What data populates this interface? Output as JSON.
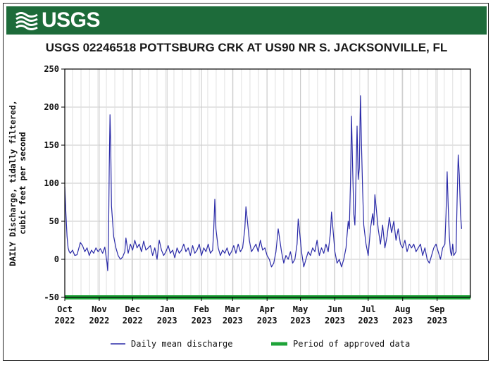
{
  "header": {
    "logo_text": "USGS",
    "logo_icon": "usgs-wave-icon",
    "brand_color": "#1d6b3a"
  },
  "chart_data": {
    "type": "line",
    "title": "USGS 02246518 POTTSBURG CRK AT US90 NR S. JACKSONVILLE, FL",
    "ylabel_lines": [
      "DAILY Discharge, tidally filtered,",
      "cubic feet per second"
    ],
    "ylim": [
      -50,
      250
    ],
    "yticks": [
      "250",
      "200",
      "150",
      "100",
      "50",
      "0",
      "-50"
    ],
    "ytick_values": [
      250,
      200,
      150,
      100,
      50,
      0,
      -50
    ],
    "xticks": [
      {
        "month": "Oct",
        "year": "2022",
        "day": 0
      },
      {
        "month": "Nov",
        "year": "2022",
        "day": 31
      },
      {
        "month": "Dec",
        "year": "2022",
        "day": 61
      },
      {
        "month": "Jan",
        "year": "2023",
        "day": 92
      },
      {
        "month": "Feb",
        "year": "2023",
        "day": 123
      },
      {
        "month": "Mar",
        "year": "2023",
        "day": 151
      },
      {
        "month": "Apr",
        "year": "2023",
        "day": 182
      },
      {
        "month": "May",
        "year": "2023",
        "day": 212
      },
      {
        "month": "Jun",
        "year": "2023",
        "day": 243
      },
      {
        "month": "Jul",
        "year": "2023",
        "day": 273
      },
      {
        "month": "Aug",
        "year": "2023",
        "day": 304
      },
      {
        "month": "Sep",
        "year": "2023",
        "day": 335
      }
    ],
    "x_range_days": [
      0,
      365
    ],
    "grid": true,
    "series": [
      {
        "name": "Daily mean discharge",
        "color": "#2b2ba8",
        "points": [
          [
            0,
            95
          ],
          [
            1,
            60
          ],
          [
            2,
            30
          ],
          [
            3,
            15
          ],
          [
            4,
            10
          ],
          [
            5,
            8
          ],
          [
            7,
            12
          ],
          [
            9,
            5
          ],
          [
            11,
            6
          ],
          [
            14,
            22
          ],
          [
            16,
            18
          ],
          [
            18,
            10
          ],
          [
            20,
            15
          ],
          [
            22,
            5
          ],
          [
            24,
            12
          ],
          [
            26,
            8
          ],
          [
            28,
            15
          ],
          [
            30,
            10
          ],
          [
            32,
            14
          ],
          [
            34,
            8
          ],
          [
            36,
            16
          ],
          [
            38,
            -5
          ],
          [
            38.6,
            -15
          ],
          [
            39.3,
            20
          ],
          [
            40,
            120
          ],
          [
            40.7,
            190
          ],
          [
            41.3,
            150
          ],
          [
            42,
            70
          ],
          [
            44,
            30
          ],
          [
            46,
            15
          ],
          [
            48,
            5
          ],
          [
            50,
            0
          ],
          [
            52,
            3
          ],
          [
            54,
            10
          ],
          [
            55,
            28
          ],
          [
            57,
            8
          ],
          [
            59,
            20
          ],
          [
            61,
            12
          ],
          [
            63,
            25
          ],
          [
            65,
            15
          ],
          [
            67,
            20
          ],
          [
            69,
            10
          ],
          [
            71,
            24
          ],
          [
            73,
            12
          ],
          [
            75,
            15
          ],
          [
            77,
            18
          ],
          [
            79,
            5
          ],
          [
            81,
            15
          ],
          [
            83,
            0
          ],
          [
            85,
            25
          ],
          [
            87,
            12
          ],
          [
            89,
            5
          ],
          [
            91,
            10
          ],
          [
            93,
            18
          ],
          [
            95,
            8
          ],
          [
            97,
            12
          ],
          [
            99,
            2
          ],
          [
            101,
            15
          ],
          [
            103,
            8
          ],
          [
            105,
            12
          ],
          [
            107,
            20
          ],
          [
            109,
            10
          ],
          [
            111,
            15
          ],
          [
            113,
            5
          ],
          [
            115,
            18
          ],
          [
            117,
            8
          ],
          [
            119,
            12
          ],
          [
            121,
            20
          ],
          [
            123,
            5
          ],
          [
            125,
            15
          ],
          [
            127,
            10
          ],
          [
            129,
            20
          ],
          [
            131,
            8
          ],
          [
            133,
            12
          ],
          [
            134,
            40
          ],
          [
            135,
            79
          ],
          [
            136,
            40
          ],
          [
            138,
            15
          ],
          [
            140,
            5
          ],
          [
            142,
            12
          ],
          [
            144,
            8
          ],
          [
            146,
            15
          ],
          [
            148,
            5
          ],
          [
            150,
            10
          ],
          [
            152,
            18
          ],
          [
            154,
            8
          ],
          [
            156,
            20
          ],
          [
            158,
            10
          ],
          [
            160,
            15
          ],
          [
            162,
            40
          ],
          [
            163,
            69
          ],
          [
            164,
            55
          ],
          [
            166,
            25
          ],
          [
            168,
            10
          ],
          [
            170,
            15
          ],
          [
            172,
            20
          ],
          [
            174,
            10
          ],
          [
            176,
            25
          ],
          [
            178,
            12
          ],
          [
            180,
            15
          ],
          [
            182,
            5
          ],
          [
            184,
            0
          ],
          [
            186,
            -10
          ],
          [
            188,
            -5
          ],
          [
            190,
            10
          ],
          [
            192,
            40
          ],
          [
            193,
            30
          ],
          [
            195,
            10
          ],
          [
            197,
            -5
          ],
          [
            199,
            5
          ],
          [
            201,
            0
          ],
          [
            203,
            10
          ],
          [
            205,
            -5
          ],
          [
            207,
            0
          ],
          [
            209,
            20
          ],
          [
            210,
            53
          ],
          [
            211,
            40
          ],
          [
            213,
            10
          ],
          [
            215,
            -10
          ],
          [
            217,
            0
          ],
          [
            219,
            10
          ],
          [
            221,
            5
          ],
          [
            223,
            15
          ],
          [
            225,
            10
          ],
          [
            227,
            25
          ],
          [
            229,
            5
          ],
          [
            231,
            15
          ],
          [
            233,
            8
          ],
          [
            235,
            20
          ],
          [
            237,
            10
          ],
          [
            239,
            35
          ],
          [
            240,
            62
          ],
          [
            241,
            45
          ],
          [
            243,
            10
          ],
          [
            245,
            -5
          ],
          [
            247,
            0
          ],
          [
            249,
            -10
          ],
          [
            251,
            0
          ],
          [
            253,
            15
          ],
          [
            255,
            50
          ],
          [
            256,
            40
          ],
          [
            257,
            100
          ],
          [
            258,
            188
          ],
          [
            259,
            120
          ],
          [
            260,
            60
          ],
          [
            261,
            45
          ],
          [
            262,
            110
          ],
          [
            263,
            175
          ],
          [
            264,
            105
          ],
          [
            265,
            120
          ],
          [
            266,
            215
          ],
          [
            267,
            150
          ],
          [
            268,
            90
          ],
          [
            269,
            45
          ],
          [
            271,
            20
          ],
          [
            273,
            5
          ],
          [
            275,
            40
          ],
          [
            277,
            60
          ],
          [
            278,
            45
          ],
          [
            279,
            85
          ],
          [
            280,
            70
          ],
          [
            282,
            40
          ],
          [
            284,
            20
          ],
          [
            286,
            45
          ],
          [
            288,
            15
          ],
          [
            290,
            30
          ],
          [
            292,
            55
          ],
          [
            294,
            35
          ],
          [
            296,
            50
          ],
          [
            298,
            25
          ],
          [
            300,
            40
          ],
          [
            302,
            20
          ],
          [
            304,
            15
          ],
          [
            306,
            25
          ],
          [
            308,
            10
          ],
          [
            310,
            20
          ],
          [
            312,
            15
          ],
          [
            314,
            20
          ],
          [
            316,
            10
          ],
          [
            318,
            15
          ],
          [
            320,
            20
          ],
          [
            322,
            5
          ],
          [
            324,
            15
          ],
          [
            326,
            0
          ],
          [
            328,
            -5
          ],
          [
            330,
            5
          ],
          [
            332,
            15
          ],
          [
            334,
            20
          ],
          [
            336,
            10
          ],
          [
            338,
            0
          ],
          [
            340,
            15
          ],
          [
            342,
            20
          ],
          [
            343,
            60
          ],
          [
            344,
            115
          ],
          [
            345,
            70
          ],
          [
            346,
            30
          ],
          [
            347,
            10
          ],
          [
            348,
            5
          ],
          [
            349,
            20
          ],
          [
            350,
            5
          ],
          [
            352,
            10
          ],
          [
            353,
            80
          ],
          [
            354,
            137
          ],
          [
            355,
            110
          ],
          [
            356,
            60
          ],
          [
            357,
            40
          ]
        ]
      },
      {
        "name": "Period of approved data",
        "color": "#1ea338",
        "value": -50,
        "range_days": [
          0,
          365
        ]
      }
    ],
    "legend_placement": "bottom"
  }
}
